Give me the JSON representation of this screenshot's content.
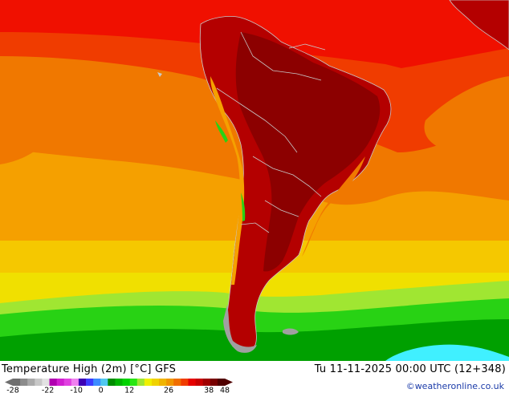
{
  "map": {
    "title": "Temperature High (2m) [°C] GFS",
    "valid_time": "Tu 11-11-2025 00:00 UTC (12+348)",
    "credit": "©weatheronline.co.uk",
    "legend": {
      "tick_labels": [
        "-28",
        "-22",
        "-10",
        "0",
        "12",
        "26",
        "38",
        "48"
      ],
      "colors": [
        "#6e6e6e",
        "#8c8c8c",
        "#aaaaaa",
        "#c8c8c8",
        "#e2e2e2",
        "#b000b0",
        "#d01ed0",
        "#e040e0",
        "#f080f0",
        "#3c00b4",
        "#3c3cff",
        "#3c8cff",
        "#50c8f0",
        "#008c00",
        "#00b400",
        "#00d200",
        "#28e614",
        "#a0e632",
        "#f0f000",
        "#f0d200",
        "#f0b400",
        "#f09600",
        "#f06e00",
        "#f03c00",
        "#e60000",
        "#c80000",
        "#a00000",
        "#780000",
        "#500000"
      ]
    },
    "field_colors": {
      "deep_red": "#8c0000",
      "dark_red": "#b40000",
      "red": "#f01000",
      "red_orange": "#f03c00",
      "orange": "#f07800",
      "light_orange": "#f5a000",
      "gold": "#f5c800",
      "yellow": "#f0f000",
      "lime": "#a0e632",
      "green": "#28d214",
      "dark_green": "#00a000",
      "cyan": "#40f0ff",
      "land_grey": "#a0a0a0",
      "border": "#c8c8c8"
    }
  }
}
